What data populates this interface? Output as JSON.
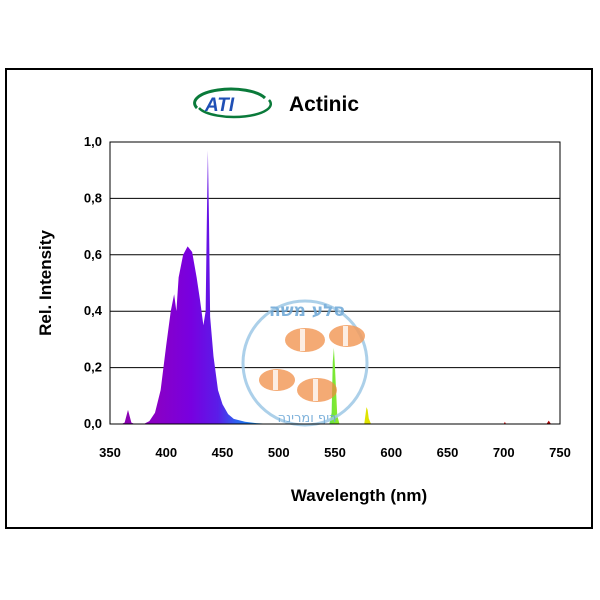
{
  "header": {
    "logo_text": "ATI",
    "title": "Actinic"
  },
  "watermark": {
    "text_top": "סלע משה",
    "text_bottom": "ריף ומרינה"
  },
  "colors": {
    "logo_green": "#0a7a3a",
    "logo_blue": "#1f4fb5",
    "grid": "#000000",
    "plot_border": "#000000"
  },
  "chart_data": {
    "type": "area",
    "title": "",
    "xlabel": "Wavelength (nm)",
    "ylabel": "Rel. Intensity",
    "xlim": [
      350,
      750
    ],
    "ylim": [
      0,
      1
    ],
    "x_ticks": [
      350,
      400,
      450,
      500,
      550,
      600,
      650,
      700,
      750
    ],
    "y_ticks": [
      0,
      0.2,
      0.4,
      0.6,
      0.8,
      1.0
    ],
    "y_tick_labels": [
      "0,0",
      "0,2",
      "0,4",
      "0,6",
      "0,8",
      "1,0"
    ],
    "grid": "horizontal",
    "series": [
      {
        "values": [
          [
            350,
            0
          ],
          [
            360,
            0
          ],
          [
            363,
            0.005
          ],
          [
            366,
            0.05
          ],
          [
            369,
            0.005
          ],
          [
            372,
            0
          ],
          [
            380,
            0
          ],
          [
            385,
            0.01
          ],
          [
            390,
            0.04
          ],
          [
            395,
            0.12
          ],
          [
            400,
            0.28
          ],
          [
            404,
            0.4
          ],
          [
            407,
            0.46
          ],
          [
            409,
            0.4
          ],
          [
            411,
            0.52
          ],
          [
            415,
            0.6
          ],
          [
            419,
            0.63
          ],
          [
            423,
            0.61
          ],
          [
            427,
            0.52
          ],
          [
            430,
            0.44
          ],
          [
            433,
            0.35
          ],
          [
            435,
            0.4
          ],
          [
            436,
            0.7
          ],
          [
            437,
            0.97
          ],
          [
            438,
            0.72
          ],
          [
            439,
            0.38
          ],
          [
            442,
            0.24
          ],
          [
            446,
            0.12
          ],
          [
            450,
            0.07
          ],
          [
            455,
            0.035
          ],
          [
            460,
            0.018
          ],
          [
            470,
            0.008
          ],
          [
            480,
            0.003
          ],
          [
            490,
            0.001
          ],
          [
            500,
            0
          ],
          [
            545,
            0
          ],
          [
            547,
            0.04
          ],
          [
            548,
            0.22
          ],
          [
            549,
            0.27
          ],
          [
            550,
            0.2
          ],
          [
            552,
            0.03
          ],
          [
            554,
            0
          ],
          [
            576,
            0
          ],
          [
            577,
            0.03
          ],
          [
            578,
            0.06
          ],
          [
            579,
            0.05
          ],
          [
            580,
            0.02
          ],
          [
            582,
            0
          ],
          [
            700,
            0
          ],
          [
            701,
            0.008
          ],
          [
            702,
            0
          ],
          [
            738,
            0
          ],
          [
            740,
            0.012
          ],
          [
            742,
            0
          ],
          [
            750,
            0
          ]
        ]
      }
    ]
  }
}
